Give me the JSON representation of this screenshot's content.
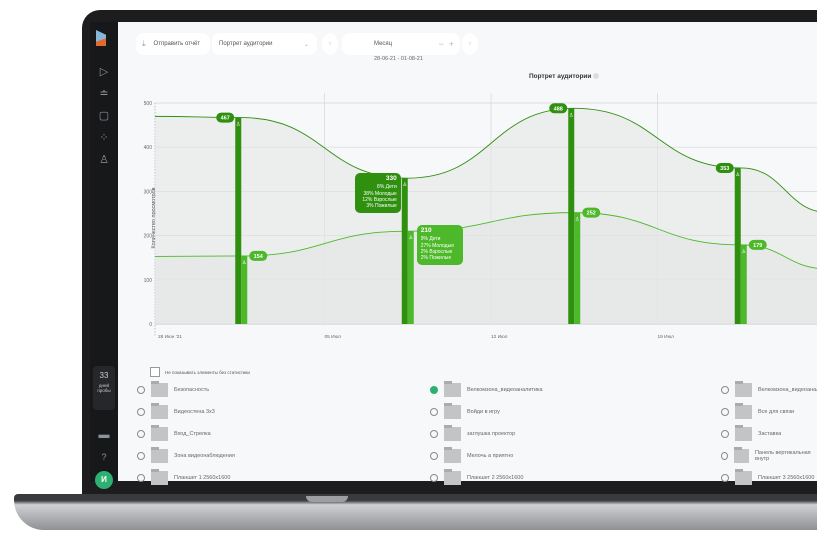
{
  "toolbar": {
    "send_report": "Отправить отчёт",
    "report_select": "Портрет аудитории",
    "period": "Месяц",
    "date_range": "28-06-21 - 01-08-21"
  },
  "sidebar": {
    "icons": [
      "play-icon",
      "filter-icon",
      "document-icon",
      "loader-icon",
      "user-icon"
    ],
    "trial_days": "33",
    "trial_label_1": "дней",
    "trial_label_2": "пробы",
    "avatar": "И"
  },
  "chart_data": {
    "type": "line",
    "title": "Портрет аудитории",
    "ylabel": "Количество просмотров",
    "ylim": [
      0,
      500
    ],
    "yticks": [
      0,
      100,
      200,
      300,
      400,
      500
    ],
    "categories": [
      "28 Июн '21",
      "05 Июл",
      "12 Июл",
      "19 Июл"
    ],
    "grid": true,
    "series": [
      {
        "values": [
          467,
          330,
          488,
          353
        ],
        "color": "#2f8f0f"
      },
      {
        "values": [
          154,
          210,
          252,
          179
        ],
        "color": "#4cb82a"
      }
    ],
    "tooltips": [
      {
        "series": 0,
        "index": 1,
        "value": "330",
        "lines": [
          "8% Дети",
          "38% Молодые",
          "12% Взрослые",
          "3% Пожилые"
        ]
      },
      {
        "series": 1,
        "index": 1,
        "value": "210",
        "lines": [
          "9% Дети",
          "27% Молодые",
          "2% Взрослые",
          "2% Пожилые"
        ]
      }
    ]
  },
  "filter": {
    "hide_empty": "Не показывать элементы без статистики"
  },
  "items": [
    [
      "Безопасность",
      "Велкомзона_видеоаналитика",
      "Велкомзона_видеоаналитика"
    ],
    [
      "Видеостена 3х3",
      "Войди в игру",
      "Все для связи"
    ],
    [
      "Вход_Стрелка",
      "заглушка проектор",
      "Заставка"
    ],
    [
      "Зона видеонаблюдения",
      "Мелочь а приятно",
      "Панель вертикальная внутр"
    ],
    [
      "Планшет 1 2560х1600",
      "Планшет 2 2560х1600",
      "Планшет 3 2560х1600"
    ]
  ],
  "selected_item": "Велкомзона_видеоаналитика"
}
